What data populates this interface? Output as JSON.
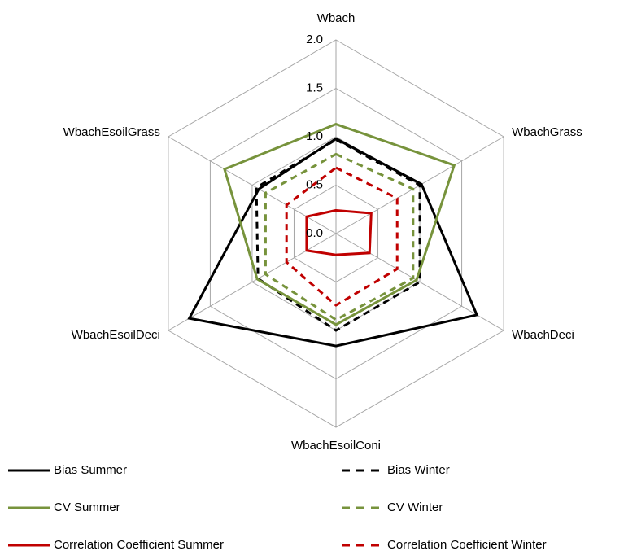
{
  "chart_data": {
    "type": "radar",
    "categories": [
      "Wbach",
      "WbachGrass",
      "WbachDeci",
      "WbachEsoilConi",
      "WbachEsoilDeci",
      "WbachEsoilGrass"
    ],
    "rlim": [
      0,
      2
    ],
    "rticks": [
      {
        "value": 0,
        "label": "0.0"
      },
      {
        "value": 0.5,
        "label": "0.5"
      },
      {
        "value": 1,
        "label": "1.0"
      },
      {
        "value": 1.5,
        "label": "1.5"
      },
      {
        "value": 2,
        "label": "2.0"
      }
    ],
    "grid": true,
    "series": [
      {
        "name": "Bias Summer",
        "color": "#000000",
        "line_style": "solid",
        "values": [
          0.98,
          1.02,
          1.68,
          1.16,
          1.75,
          0.92
        ]
      },
      {
        "name": "Bias Winter",
        "color": "#000000",
        "line_style": "dashed",
        "values": [
          0.97,
          1.0,
          1.0,
          1.0,
          0.93,
          0.95
        ]
      },
      {
        "name": "CV Summer",
        "color": "#77933c",
        "line_style": "solid",
        "values": [
          1.13,
          1.41,
          0.96,
          0.94,
          0.94,
          1.33
        ]
      },
      {
        "name": "CV Winter",
        "color": "#77933c",
        "line_style": "dashed",
        "values": [
          0.82,
          0.92,
          0.92,
          0.89,
          0.84,
          0.84
        ]
      },
      {
        "name": "Correlation Coefficient Summer",
        "color": "#c00000",
        "line_style": "solid",
        "values": [
          0.24,
          0.42,
          0.4,
          0.22,
          0.35,
          0.35
        ]
      },
      {
        "name": "Correlation Coefficient Winter",
        "color": "#c00000",
        "line_style": "dashed",
        "values": [
          0.68,
          0.73,
          0.73,
          0.74,
          0.59,
          0.59
        ]
      }
    ]
  }
}
